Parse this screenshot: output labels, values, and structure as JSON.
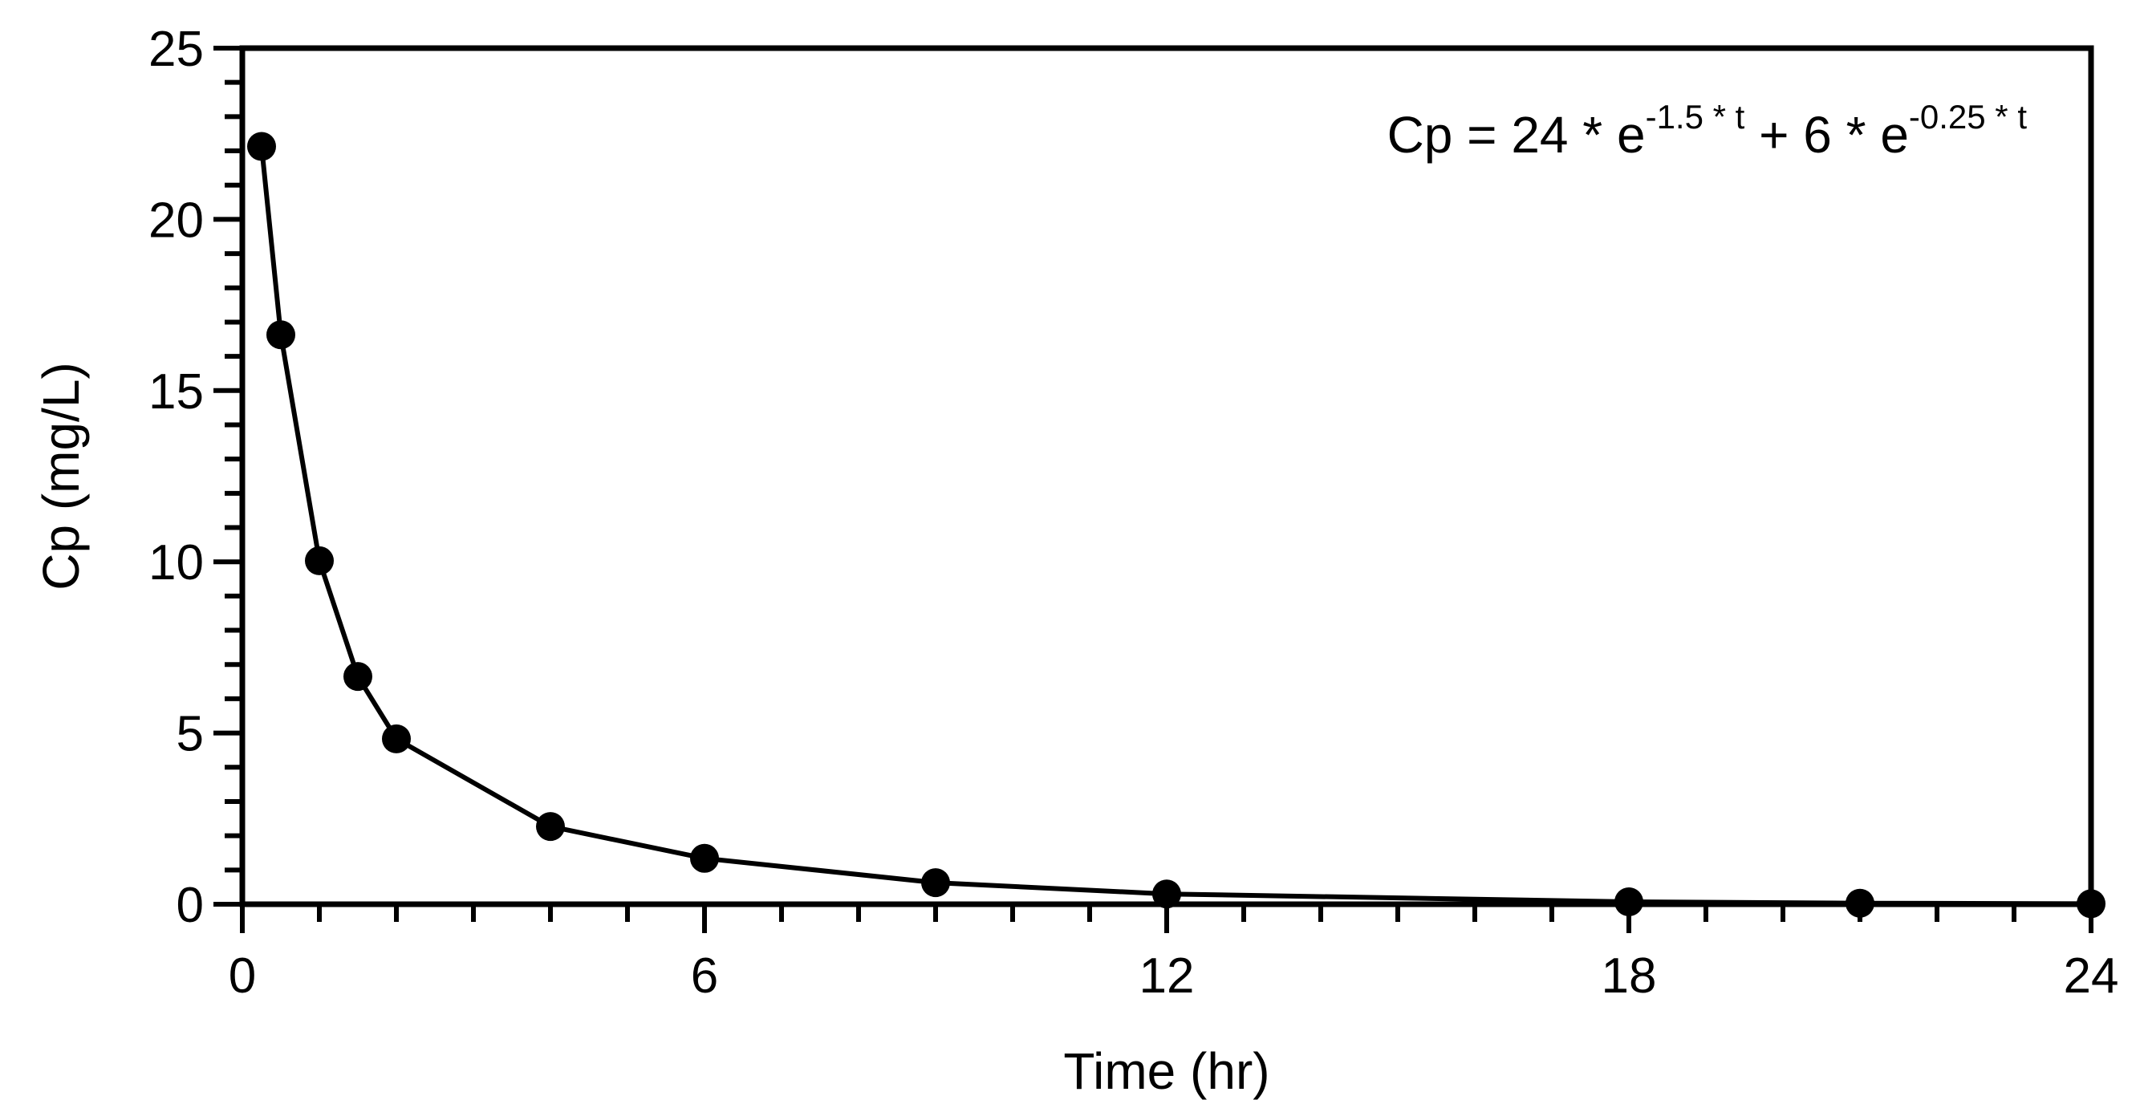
{
  "chart_data": {
    "type": "line",
    "title": "",
    "xlabel": "Time (hr)",
    "ylabel": "Cp (mg/L)",
    "xlim": [
      0,
      24
    ],
    "ylim": [
      0,
      25
    ],
    "x_ticks": [
      0,
      6,
      12,
      18,
      24
    ],
    "y_ticks": [
      0,
      5,
      10,
      15,
      20,
      25
    ],
    "x_minor_step": 1,
    "y_minor_step": 1,
    "grid": false,
    "marker": "filled-circle",
    "color": "#000000",
    "annotation": {
      "base1": "Cp = 24 * e",
      "exp1": "-1.5 * t",
      "base2": " + 6 * e",
      "exp2": "-0.25 * t"
    },
    "series": [
      {
        "x": [
          0.25,
          0.5,
          1,
          1.5,
          2,
          4,
          6,
          9,
          12,
          18,
          21,
          24
        ],
        "y": [
          22.13,
          16.63,
          10.03,
          6.65,
          4.83,
          2.27,
          1.34,
          0.63,
          0.3,
          0.07,
          0.03,
          0.015
        ]
      }
    ]
  }
}
